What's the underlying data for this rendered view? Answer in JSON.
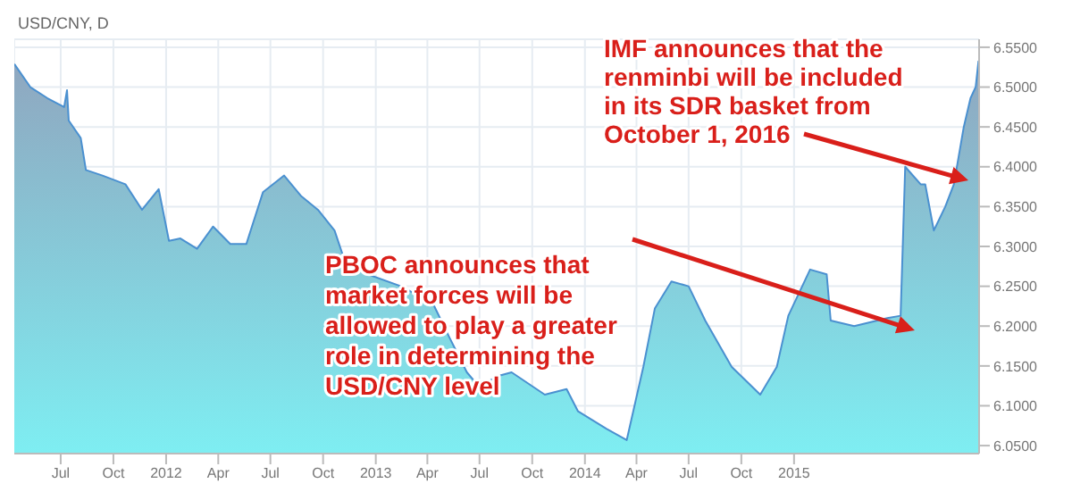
{
  "chart_data": {
    "type": "area",
    "title": "USD/CNY, D",
    "x": [
      "2011-04-11",
      "2011-05-09",
      "2011-06-08",
      "2011-07-07",
      "2011-07-12",
      "2011-07-15",
      "2011-08-05",
      "2011-08-14",
      "2011-09-12",
      "2011-10-22",
      "2011-11-20",
      "2011-12-19",
      "2012-01-06",
      "2012-01-26",
      "2012-02-24",
      "2012-03-23",
      "2012-04-22",
      "2012-05-20",
      "2012-06-18",
      "2012-07-25",
      "2012-08-24",
      "2012-09-22",
      "2012-10-21",
      "2012-11-10",
      "2012-12-18",
      "2013-02-14",
      "2013-04-11",
      "2013-05-10",
      "2013-06-09",
      "2013-06-29",
      "2013-08-06",
      "2013-08-26",
      "2013-10-23",
      "2013-11-30",
      "2013-12-20",
      "2014-02-08",
      "2014-03-15",
      "2014-04-13",
      "2014-05-03",
      "2014-06-01",
      "2014-07-01",
      "2014-07-30",
      "2014-09-14",
      "2014-11-03",
      "2014-12-02",
      "2014-12-22",
      "2015-01-29",
      "2015-02-27",
      "2015-03-06",
      "2015-04-16",
      "2015-06-13",
      "2015-07-06",
      "2015-07-14",
      "2015-08-10",
      "2015-08-18",
      "2015-09-02",
      "2015-09-22",
      "2015-10-07",
      "2015-10-24",
      "2015-11-05",
      "2015-11-14",
      "2015-11-19"
    ],
    "series": [
      {
        "color": "#4a90d0",
        "values": [
          6.529,
          6.5,
          6.486,
          6.475,
          6.496,
          6.458,
          6.436,
          6.396,
          6.389,
          6.378,
          6.346,
          6.372,
          6.307,
          6.31,
          6.297,
          6.325,
          6.303,
          6.303,
          6.368,
          6.389,
          6.363,
          6.346,
          6.32,
          6.277,
          6.265,
          6.25,
          6.228,
          6.185,
          6.142,
          6.125,
          6.138,
          6.142,
          6.114,
          6.121,
          6.093,
          6.071,
          6.057,
          6.149,
          6.222,
          6.256,
          6.25,
          6.207,
          6.149,
          6.114,
          6.149,
          6.213,
          6.271,
          6.265,
          6.207,
          6.2,
          6.21,
          6.213,
          6.4,
          6.378,
          6.378,
          6.32,
          6.35,
          6.378,
          6.449,
          6.486,
          6.5,
          6.533
        ]
      }
    ],
    "xlim": [
      "2011-04-11",
      "2015-11-20"
    ],
    "xticks": [
      {
        "value": "2011-07-01",
        "label": "Jul"
      },
      {
        "value": "2011-10-01",
        "label": "Oct"
      },
      {
        "value": "2012-01-01",
        "label": "2012"
      },
      {
        "value": "2012-04-01",
        "label": "Apr"
      },
      {
        "value": "2012-07-01",
        "label": "Jul"
      },
      {
        "value": "2012-10-01",
        "label": "Oct"
      },
      {
        "value": "2013-01-01",
        "label": "2013"
      },
      {
        "value": "2013-04-01",
        "label": "Apr"
      },
      {
        "value": "2013-07-01",
        "label": "Jul"
      },
      {
        "value": "2013-10-01",
        "label": "Oct"
      },
      {
        "value": "2014-01-01",
        "label": "2014"
      },
      {
        "value": "2014-04-01",
        "label": "Apr"
      },
      {
        "value": "2014-07-01",
        "label": "Jul"
      },
      {
        "value": "2014-10-01",
        "label": "Oct"
      },
      {
        "value": "2015-01-01",
        "label": "2015"
      }
    ],
    "ylim": [
      6.04,
      6.56
    ],
    "yticks": [
      {
        "value": 6.05,
        "label": "6.0500"
      },
      {
        "value": 6.1,
        "label": "6.1000"
      },
      {
        "value": 6.15,
        "label": "6.1500"
      },
      {
        "value": 6.2,
        "label": "6.2000"
      },
      {
        "value": 6.25,
        "label": "6.2500"
      },
      {
        "value": 6.3,
        "label": "6.3000"
      },
      {
        "value": 6.35,
        "label": "6.3500"
      },
      {
        "value": 6.4,
        "label": "6.4000"
      },
      {
        "value": 6.45,
        "label": "6.4500"
      },
      {
        "value": 6.5,
        "label": "6.5000"
      },
      {
        "value": 6.55,
        "label": "6.5500"
      }
    ],
    "grid": true,
    "annotations": [
      "IMF announces that the renminbi will be included in its SDR basket from October 1, 2016",
      "PBOC announces that market forces will be allowed to play a greater role in determining the USD/CNY level"
    ]
  }
}
